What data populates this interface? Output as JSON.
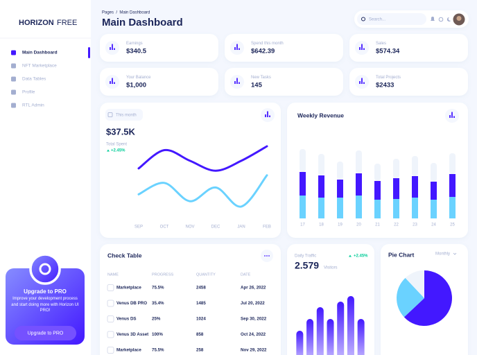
{
  "sidebar": {
    "logo_bold": "HORIZON",
    "logo_light": "FREE",
    "menu": [
      "Main Dashboard",
      "NFT Marketplace",
      "Data Tables",
      "Profile",
      "RTL Admin"
    ],
    "active_menu": 0,
    "upgrade": {
      "title": "Upgrade to PRO",
      "text": "Improve your development process and start doing more with Horizon UI PRO!",
      "button": "Upgrade to PRO"
    }
  },
  "header": {
    "breadcrumb": "Pages  /  Main Dashboard",
    "title": "Main Dashboard",
    "search_placeholder": "Search..."
  },
  "stats": [
    {
      "label": "Earnings",
      "value": "$340.5"
    },
    {
      "label": "Spend this month",
      "value": "$642.39"
    },
    {
      "label": "Sales",
      "value": "$574.34"
    },
    {
      "label": "Your Balance",
      "value": "$1,000"
    },
    {
      "label": "New Tasks",
      "value": "145"
    },
    {
      "label": "Total Projects",
      "value": "$2433"
    }
  ],
  "spending": {
    "button": "This month",
    "total": "$37.5K",
    "label": "Total Spent",
    "change": "+2.45%",
    "chart": {
      "type": "line",
      "categories": [
        "SEP",
        "OCT",
        "NOV",
        "DEC",
        "JAN",
        "FEB"
      ],
      "series": [
        {
          "color": "#4318ff",
          "values": [
            61,
            85,
            71,
            58,
            71,
            90
          ]
        },
        {
          "color": "#6ad2ff",
          "values": [
            27,
            42,
            18,
            36,
            11,
            52
          ]
        }
      ],
      "ylim": [
        0,
        100
      ]
    }
  },
  "weekly_revenue": {
    "title": "Weekly Revenue",
    "chart": {
      "type": "bar",
      "stacked": true,
      "categories": [
        "17",
        "18",
        "19",
        "20",
        "21",
        "22",
        "23",
        "24",
        "25"
      ],
      "series": [
        {
          "color": "#6ad2ff",
          "values": [
            33,
            30,
            30,
            33,
            27,
            28,
            30,
            27,
            31
          ]
        },
        {
          "color": "#4318ff",
          "values": [
            34,
            32,
            26,
            32,
            27,
            30,
            31,
            26,
            33
          ]
        },
        {
          "color": "#eff4fb",
          "values": [
            33,
            31,
            26,
            33,
            25,
            28,
            29,
            27,
            30
          ]
        }
      ],
      "ylim": [
        0,
        100
      ]
    }
  },
  "check_table": {
    "title": "Check Table",
    "columns": [
      "NAME",
      "PROGRESS",
      "QUANTITY",
      "DATE"
    ],
    "rows": [
      [
        "Marketplace",
        "75.5%",
        "2458",
        "Apr 26, 2022"
      ],
      [
        "Venus DB PRO",
        "35.4%",
        "1485",
        "Jul 20, 2022"
      ],
      [
        "Venus DS",
        "25%",
        "1024",
        "Sep 30, 2022"
      ],
      [
        "Venus 3D Asset",
        "100%",
        "858",
        "Oct 24, 2022"
      ],
      [
        "Marketplace",
        "75.5%",
        "258",
        "Nov 29, 2022"
      ]
    ]
  },
  "daily_traffic": {
    "label": "Daily Traffic",
    "change": "+2.45%",
    "value": "2.579",
    "unit": "Visitors",
    "chart": {
      "type": "bar",
      "color": "#4318ff",
      "values": [
        43,
        60,
        77,
        60,
        85,
        93,
        60
      ],
      "ylim": [
        0,
        100
      ]
    }
  },
  "pie_card": {
    "title": "Pie Chart",
    "period": "Monthly",
    "chart": {
      "type": "pie",
      "values": [
        63,
        25,
        12
      ],
      "colors": [
        "#4318ff",
        "#6ad2ff",
        "#eff4fb"
      ]
    }
  }
}
